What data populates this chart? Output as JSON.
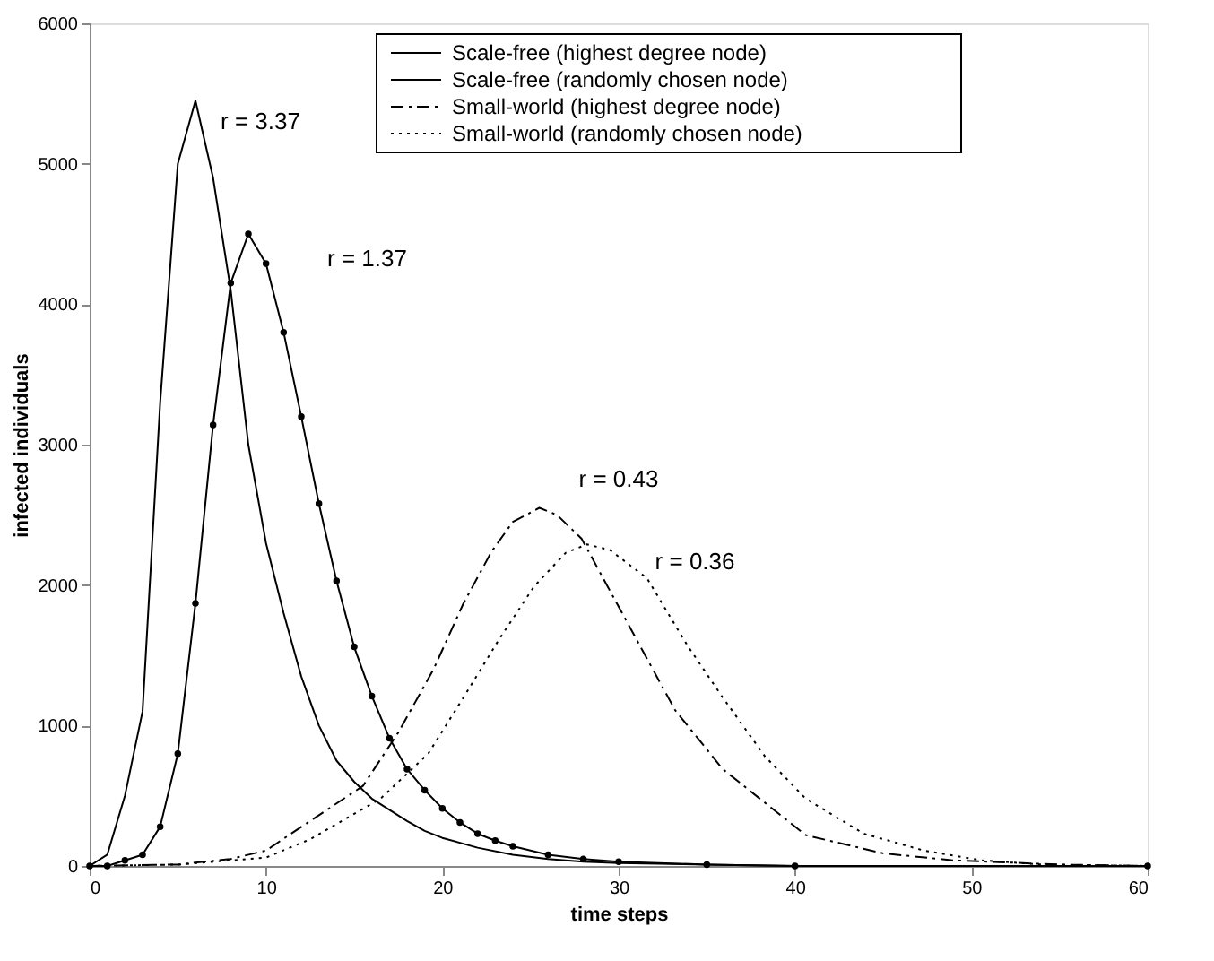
{
  "chart_data": {
    "type": "line",
    "xlabel": "time steps",
    "ylabel": "infected individuals",
    "xlim": [
      0,
      60
    ],
    "xticks": [
      0,
      10,
      20,
      30,
      40,
      50,
      60
    ],
    "ylim": [
      0,
      6000
    ],
    "yticks": [
      0,
      1000,
      2000,
      3000,
      4000,
      5000,
      6000
    ],
    "grid": false,
    "legend": "top right",
    "series": [
      {
        "name": "Scale-free (highest degree node)",
        "color": "#000000",
        "line_style": "solid",
        "marker": "none",
        "x": [
          0,
          1,
          2,
          3,
          4,
          5,
          6,
          7,
          8,
          9,
          10,
          11,
          12,
          13,
          14,
          15,
          16,
          17,
          18,
          19,
          20,
          22,
          24,
          26,
          28,
          30,
          35,
          40,
          50,
          60
        ],
        "values": [
          0,
          80,
          500,
          1100,
          3300,
          5000,
          5450,
          4900,
          4100,
          3000,
          2300,
          1800,
          1350,
          1000,
          750,
          600,
          480,
          400,
          320,
          250,
          200,
          130,
          80,
          50,
          30,
          20,
          10,
          0,
          0,
          0
        ]
      },
      {
        "name": "Scale-free (randomly chosen node)",
        "color": "#000000",
        "line_style": "solid",
        "marker": "circle",
        "x": [
          0,
          1,
          2,
          3,
          4,
          5,
          6,
          7,
          8,
          9,
          10,
          11,
          12,
          13,
          14,
          15,
          16,
          17,
          18,
          19,
          20,
          21,
          22,
          23,
          24,
          26,
          28,
          30,
          35,
          40,
          60
        ],
        "values": [
          0,
          0,
          40,
          80,
          280,
          800,
          1870,
          3140,
          4150,
          4500,
          4290,
          3800,
          3200,
          2580,
          2030,
          1560,
          1210,
          910,
          690,
          540,
          410,
          310,
          230,
          180,
          140,
          80,
          50,
          30,
          10,
          0,
          0
        ]
      },
      {
        "name": "Small-world (highest degree node)",
        "color": "#000000",
        "line_style": "dashed",
        "marker": "none",
        "x": [
          0,
          5,
          8,
          10,
          12.5,
          15.5,
          17.5,
          19.5,
          21.2,
          22.8,
          24,
          25.5,
          26.5,
          27.9,
          29.2,
          31.2,
          33.2,
          35.9,
          39.6,
          40.6,
          45,
          49,
          55,
          60
        ],
        "values": [
          0,
          10,
          50,
          110,
          320,
          570,
          950,
          1400,
          1870,
          2240,
          2450,
          2550,
          2500,
          2330,
          2030,
          1570,
          1110,
          690,
          320,
          220,
          90,
          40,
          10,
          0
        ]
      },
      {
        "name": "Small-world (randomly chosen node)",
        "color": "#000000",
        "line_style": "dotted",
        "marker": "none",
        "x": [
          0,
          5,
          10,
          12.5,
          16.5,
          19.2,
          21.2,
          23.2,
          25.2,
          27,
          28.2,
          29.5,
          31.6,
          33.9,
          35.9,
          38.3,
          40.6,
          43.9,
          47.3,
          50.6,
          54,
          60
        ],
        "values": [
          0,
          10,
          60,
          190,
          480,
          800,
          1200,
          1610,
          1990,
          2230,
          2290,
          2250,
          2050,
          1570,
          1200,
          780,
          480,
          230,
          110,
          40,
          10,
          0
        ]
      }
    ],
    "annotations": [
      "r = 3.37",
      "r = 1.37",
      "r = 0.43",
      "r = 0.36"
    ]
  }
}
